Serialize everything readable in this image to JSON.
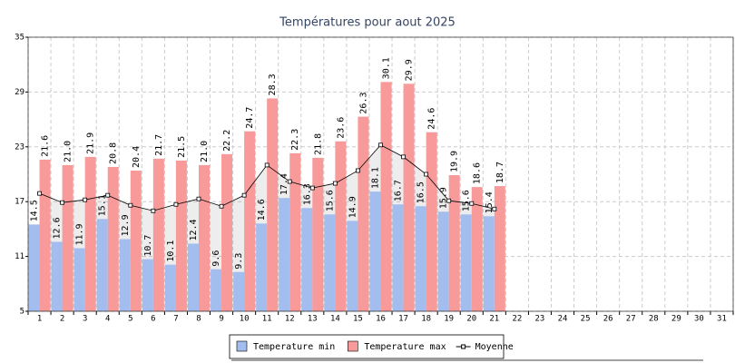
{
  "chart_data": {
    "type": "bar",
    "title": "Températures pour aout 2025",
    "categories": [
      1,
      2,
      3,
      4,
      5,
      6,
      7,
      8,
      9,
      10,
      11,
      12,
      13,
      14,
      15,
      16,
      17,
      18,
      19,
      20,
      21,
      22,
      23,
      24,
      25,
      26,
      27,
      28,
      29,
      30,
      31
    ],
    "series": [
      {
        "name": "Temperature min",
        "color": "#a3bdee",
        "values": [
          14.5,
          12.6,
          11.9,
          15.1,
          12.9,
          10.7,
          10.1,
          12.4,
          9.6,
          9.3,
          14.6,
          17.4,
          16.3,
          15.6,
          14.9,
          18.1,
          16.7,
          16.5,
          15.9,
          15.6,
          15.4,
          null,
          null,
          null,
          null,
          null,
          null,
          null,
          null,
          null,
          null
        ],
        "value_labels": [
          "14.5",
          "12.6",
          "11.9",
          "15.1",
          "12.9",
          "10.7",
          "10.1",
          "12.4",
          "9.6",
          "9.3",
          "14.6",
          "17.4",
          "16.3",
          "15.6",
          "14.9",
          "18.1",
          "16.7",
          "16.5",
          "15.9",
          "15.6",
          "15.4",
          null,
          null,
          null,
          null,
          null,
          null,
          null,
          null,
          null,
          null
        ]
      },
      {
        "name": "Temperature max",
        "color": "#f89a9a",
        "values": [
          21.6,
          21.0,
          21.9,
          20.8,
          20.4,
          21.7,
          21.5,
          21.0,
          22.2,
          24.7,
          28.3,
          22.3,
          21.8,
          23.6,
          26.3,
          30.1,
          29.9,
          24.6,
          19.9,
          18.6,
          18.7,
          null,
          null,
          null,
          null,
          null,
          null,
          null,
          null,
          null,
          null
        ],
        "value_labels": [
          "21.6",
          "21.0",
          "21.9",
          "20.8",
          "20.4",
          "21.7",
          "21.5",
          "21.0",
          "22.2",
          "24.7",
          "28.3",
          "22.3",
          "21.8",
          "23.6",
          "26.3",
          "30.1",
          "29.9",
          "24.6",
          "19.9",
          "18.6",
          "18.7",
          null,
          null,
          null,
          null,
          null,
          null,
          null,
          null,
          null,
          null
        ]
      },
      {
        "name": "Moyenne",
        "color": "#000000",
        "kind": "line",
        "values": [
          17.9,
          16.9,
          17.2,
          17.7,
          16.6,
          16.0,
          16.7,
          17.3,
          16.5,
          17.7,
          21.0,
          19.2,
          18.5,
          19.0,
          20.4,
          23.2,
          21.9,
          20.0,
          17.1,
          16.8,
          16.2,
          null,
          null,
          null,
          null,
          null,
          null,
          null,
          null,
          null,
          null
        ]
      }
    ],
    "ylim": [
      5,
      35
    ],
    "yticks": [
      5,
      11,
      17,
      23,
      29,
      35
    ],
    "grid": true,
    "legend": "bottom"
  }
}
